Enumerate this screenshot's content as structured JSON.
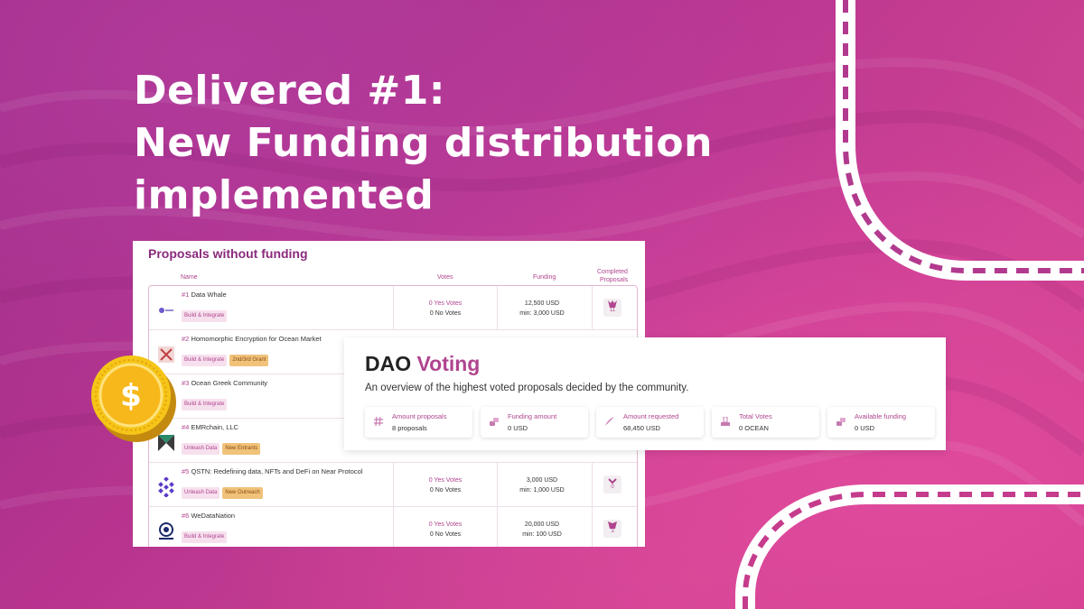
{
  "headline": {
    "line1": "Delivered #1:",
    "line2": "New Funding distribution",
    "line3": "implemented"
  },
  "proposals": {
    "title": "Proposals without funding",
    "columns": {
      "name": "Name",
      "votes": "Votes",
      "funding": "Funding",
      "completed_1": "Completed",
      "completed_2": "Proposals"
    },
    "rows": [
      {
        "num": "#1",
        "name": "Data Whale",
        "tags": [
          "Build & Integrate"
        ],
        "yes_votes": "0 Yes Votes",
        "no_votes": "0 No Votes",
        "funding": "12,500 USD",
        "min": "min: 3,000 USD",
        "completed": "11"
      },
      {
        "num": "#2",
        "name": "Homomorphic Encryption for Ocean Market",
        "tags": [
          "Build & Integrate",
          "2nd/3rd Grant"
        ]
      },
      {
        "num": "#3",
        "name": "Ocean Greek Community",
        "tags": [
          "Build & Integrate"
        ]
      },
      {
        "num": "#4",
        "name": "EMRchain, LLC",
        "tags": [
          "Unleash Data",
          "New Entrants"
        ]
      },
      {
        "num": "#5",
        "name": "QSTN: Redefining data, NFTs and DeFi on Near Protocol",
        "tags": [
          "Unleash Data",
          "New Outreach"
        ],
        "yes_votes": "0 Yes Votes",
        "no_votes": "0 No Votes",
        "funding": "3,000 USD",
        "min": "min: 1,000 USD",
        "completed": "0"
      },
      {
        "num": "#6",
        "name": "WeDataNation",
        "tags": [
          "Build & Integrate"
        ],
        "yes_votes": "0 Yes Votes",
        "no_votes": "0 No Votes",
        "funding": "20,000 USD",
        "min": "min: 100 USD",
        "completed": "3"
      }
    ]
  },
  "dao": {
    "title_main": "DAO",
    "title_accent": "Voting",
    "subtitle": "An overview of the highest voted proposals decided by the community.",
    "stats": [
      {
        "label": "Amount proposals",
        "value": "8 proposals",
        "icon": "hash-icon"
      },
      {
        "label": "Funding amount",
        "value": "0 USD",
        "icon": "coins-icon"
      },
      {
        "label": "Amount requested",
        "value": "68,450 USD",
        "icon": "rocket-icon"
      },
      {
        "label": "Total Votes",
        "value": "0 OCEAN",
        "icon": "ballot-icon"
      },
      {
        "label": "Available funding",
        "value": "0 USD",
        "icon": "coins-icon"
      }
    ]
  },
  "colors": {
    "accent": "#b0458f",
    "title_purple": "#8a2a7c",
    "coin_gold": "#f5c518"
  }
}
